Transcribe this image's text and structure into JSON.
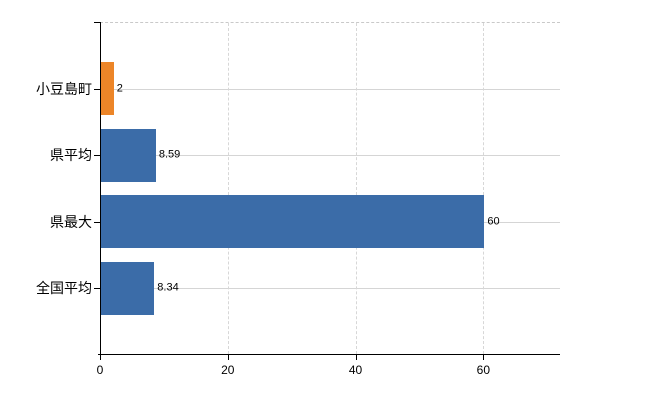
{
  "chart_data": {
    "type": "bar",
    "orientation": "horizontal",
    "title": "",
    "xlabel": "",
    "ylabel": "",
    "categories": [
      "小豆島町",
      "県平均",
      "県最大",
      "全国平均"
    ],
    "values": [
      2,
      8.59,
      60,
      8.34
    ],
    "value_labels": [
      "2",
      "8.59",
      "60",
      "8.34"
    ],
    "bar_colors": [
      "#EC8528",
      "#3B6CA8",
      "#3B6CA8",
      "#3B6CA8"
    ],
    "x_ticks": [
      0,
      20,
      40,
      60
    ],
    "x_tick_labels": [
      "0",
      "20",
      "40",
      "60"
    ],
    "xlim": [
      0,
      72
    ],
    "grid": true,
    "legend": false
  },
  "style": {
    "accent_orange": "#EC8528",
    "accent_blue": "#3B6CA8",
    "grid_color": "#D5D5D5",
    "dashed_border_color": "#C9C9C9",
    "axis_color": "#000000",
    "text_color": "#000000",
    "background": "#FFFFFF"
  }
}
